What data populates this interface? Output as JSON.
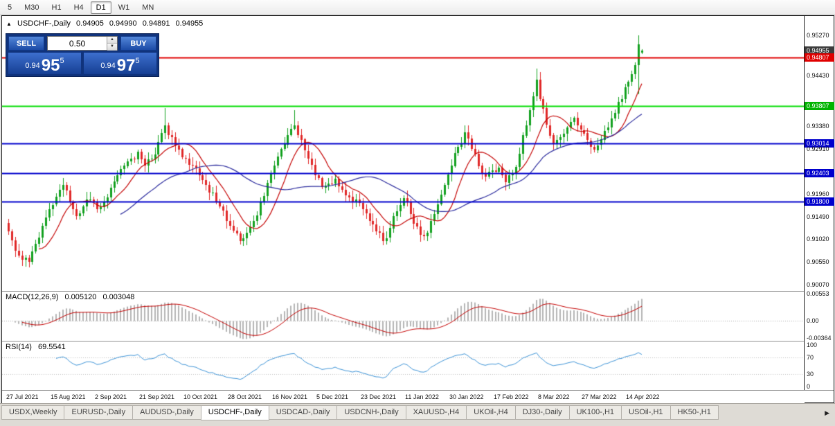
{
  "toolbar": {
    "timeframes": [
      {
        "label": "5",
        "active": false
      },
      {
        "label": "M30",
        "active": false
      },
      {
        "label": "H1",
        "active": false
      },
      {
        "label": "H4",
        "active": false
      },
      {
        "label": "D1",
        "active": true
      },
      {
        "label": "W1",
        "active": false
      },
      {
        "label": "MN",
        "active": false
      }
    ]
  },
  "icons": {
    "collapse": "▲",
    "spin_up": "▲",
    "spin_down": "▼",
    "tab_scroll_right": "▶"
  },
  "chart": {
    "title": {
      "collapse_icon": "▲",
      "symbol": "USDCHF-,Daily",
      "open": "0.94905",
      "high": "0.94990",
      "low": "0.94891",
      "close": "0.94955"
    }
  },
  "trade_panel": {
    "sell_label": "SELL",
    "buy_label": "BUY",
    "volume": "0.50",
    "bid_prefix": "0.94",
    "bid_big": "95",
    "bid_pips": "5",
    "ask_prefix": "0.94",
    "ask_big": "97",
    "ask_pips": "5"
  },
  "price_axis": {
    "labels": [
      {
        "text": "0.95270",
        "value": 0.9527,
        "type": "plain"
      },
      {
        "text": "0.94955",
        "value": 0.94955,
        "type": "current"
      },
      {
        "text": "0.94807",
        "value": 0.94807,
        "type": "red"
      },
      {
        "text": "0.94430",
        "value": 0.9443,
        "type": "plain"
      },
      {
        "text": "0.93807",
        "value": 0.93807,
        "type": "green"
      },
      {
        "text": "0.93380",
        "value": 0.9338,
        "type": "plain"
      },
      {
        "text": "0.93014",
        "value": 0.93014,
        "type": "blue"
      },
      {
        "text": "0.92910",
        "value": 0.9291,
        "type": "plain"
      },
      {
        "text": "0.92403",
        "value": 0.92403,
        "type": "blue"
      },
      {
        "text": "0.91960",
        "value": 0.9196,
        "type": "plain"
      },
      {
        "text": "0.91800",
        "value": 0.918,
        "type": "blue"
      },
      {
        "text": "0.91490",
        "value": 0.9149,
        "type": "plain"
      },
      {
        "text": "0.91020",
        "value": 0.9102,
        "type": "plain"
      },
      {
        "text": "0.90550",
        "value": 0.9055,
        "type": "plain"
      },
      {
        "text": "0.90070",
        "value": 0.9007,
        "type": "plain"
      }
    ]
  },
  "indicators": {
    "macd": {
      "name": "MACD(12,26,9)",
      "value_main": "0.005120",
      "value_signal": "0.003048",
      "axis_labels": [
        {
          "text": "0.00553",
          "value": 0.00553
        },
        {
          "text": "0.00",
          "value": 0
        },
        {
          "text": "-0.00364",
          "value": -0.00364
        }
      ]
    },
    "rsi": {
      "name": "RSI(14)",
      "value": "69.5541",
      "axis_labels": [
        {
          "text": "100",
          "value": 100
        },
        {
          "text": "70",
          "value": 70
        },
        {
          "text": "30",
          "value": 30
        },
        {
          "text": "0",
          "value": 0
        }
      ]
    }
  },
  "date_axis": {
    "labels": [
      {
        "text": "27 Jul 2021",
        "i": 0
      },
      {
        "text": "15 Aug 2021",
        "i": 13
      },
      {
        "text": "2 Sep 2021",
        "i": 26
      },
      {
        "text": "21 Sep 2021",
        "i": 39
      },
      {
        "text": "10 Oct 2021",
        "i": 52
      },
      {
        "text": "28 Oct 2021",
        "i": 65
      },
      {
        "text": "16 Nov 2021",
        "i": 78
      },
      {
        "text": "5 Dec 2021",
        "i": 91
      },
      {
        "text": "23 Dec 2021",
        "i": 104
      },
      {
        "text": "11 Jan 2022",
        "i": 117
      },
      {
        "text": "30 Jan 2022",
        "i": 130
      },
      {
        "text": "17 Feb 2022",
        "i": 143
      },
      {
        "text": "8 Mar 2022",
        "i": 156
      },
      {
        "text": "27 Mar 2022",
        "i": 169
      },
      {
        "text": "14 Apr 2022",
        "i": 182
      }
    ]
  },
  "tabs": {
    "items": [
      {
        "label": "USDX,Weekly",
        "active": false
      },
      {
        "label": "EURUSD-,Daily",
        "active": false
      },
      {
        "label": "AUDUSD-,Daily",
        "active": false
      },
      {
        "label": "USDCHF-,Daily",
        "active": true
      },
      {
        "label": "USDCAD-,Daily",
        "active": false
      },
      {
        "label": "USDCNH-,Daily",
        "active": false
      },
      {
        "label": "XAUUSD-,H4",
        "active": false
      },
      {
        "label": "UKOil-,H4",
        "active": false
      },
      {
        "label": "DJ30-,Daily",
        "active": false
      },
      {
        "label": "UK100-,H1",
        "active": false
      },
      {
        "label": "USOil-,H1",
        "active": false
      },
      {
        "label": "HK50-,H1",
        "active": false
      }
    ]
  },
  "colors": {
    "up": "#12a11f",
    "down": "#e02828",
    "ma_fast": "#c40000",
    "ma_slow": "#28289c",
    "macd_hist": "#b4b4b4",
    "macd_signal": "#c40000",
    "rsi": "#3d93d6",
    "axis_current_bg": "#3c3c3c",
    "tag_red": "#e00000",
    "tag_green": "#00b400",
    "tag_blue": "#0000cd"
  },
  "chart_data": {
    "type": "candlestick",
    "symbol": "USDCHF-",
    "timeframe": "Daily",
    "candle_count": 187,
    "first_open": 0.9135,
    "visible_price_range": [
      0.8994,
      0.9568
    ],
    "last_candle": {
      "open": 0.94905,
      "high": 0.9499,
      "low": 0.94891,
      "close": 0.94955
    },
    "close_anchors": [
      [
        0,
        0.9118
      ],
      [
        2,
        0.9078
      ],
      [
        4,
        0.906
      ],
      [
        6,
        0.9055
      ],
      [
        8,
        0.9092
      ],
      [
        10,
        0.913
      ],
      [
        12,
        0.9165
      ],
      [
        14,
        0.919
      ],
      [
        16,
        0.9215
      ],
      [
        18,
        0.918
      ],
      [
        20,
        0.915
      ],
      [
        22,
        0.917
      ],
      [
        24,
        0.9185
      ],
      [
        26,
        0.9165
      ],
      [
        28,
        0.918
      ],
      [
        30,
        0.921
      ],
      [
        32,
        0.9235
      ],
      [
        34,
        0.9255
      ],
      [
        36,
        0.927
      ],
      [
        38,
        0.9285
      ],
      [
        40,
        0.9255
      ],
      [
        42,
        0.927
      ],
      [
        44,
        0.9305
      ],
      [
        46,
        0.934
      ],
      [
        48,
        0.9315
      ],
      [
        50,
        0.929
      ],
      [
        52,
        0.927
      ],
      [
        54,
        0.9255
      ],
      [
        56,
        0.9235
      ],
      [
        58,
        0.9215
      ],
      [
        60,
        0.92
      ],
      [
        62,
        0.917
      ],
      [
        64,
        0.914
      ],
      [
        66,
        0.912
      ],
      [
        68,
        0.9098
      ],
      [
        70,
        0.9115
      ],
      [
        72,
        0.914
      ],
      [
        74,
        0.918
      ],
      [
        76,
        0.922
      ],
      [
        78,
        0.9255
      ],
      [
        80,
        0.929
      ],
      [
        82,
        0.932
      ],
      [
        84,
        0.934
      ],
      [
        86,
        0.931
      ],
      [
        88,
        0.927
      ],
      [
        90,
        0.9235
      ],
      [
        92,
        0.921
      ],
      [
        94,
        0.9218
      ],
      [
        96,
        0.9228
      ],
      [
        98,
        0.9205
      ],
      [
        100,
        0.919
      ],
      [
        102,
        0.9185
      ],
      [
        104,
        0.9165
      ],
      [
        106,
        0.914
      ],
      [
        108,
        0.9118
      ],
      [
        110,
        0.9098
      ],
      [
        112,
        0.9125
      ],
      [
        114,
        0.916
      ],
      [
        116,
        0.9188
      ],
      [
        118,
        0.9155
      ],
      [
        120,
        0.9128
      ],
      [
        122,
        0.9108
      ],
      [
        124,
        0.914
      ],
      [
        126,
        0.9175
      ],
      [
        128,
        0.9215
      ],
      [
        130,
        0.9255
      ],
      [
        132,
        0.9295
      ],
      [
        134,
        0.9325
      ],
      [
        136,
        0.929
      ],
      [
        138,
        0.9255
      ],
      [
        140,
        0.9232
      ],
      [
        142,
        0.9245
      ],
      [
        144,
        0.9252
      ],
      [
        146,
        0.922
      ],
      [
        148,
        0.924
      ],
      [
        150,
        0.928
      ],
      [
        152,
        0.934
      ],
      [
        154,
        0.94
      ],
      [
        155,
        0.9435
      ],
      [
        156,
        0.9395
      ],
      [
        158,
        0.934
      ],
      [
        160,
        0.93
      ],
      [
        162,
        0.9315
      ],
      [
        164,
        0.9335
      ],
      [
        166,
        0.9355
      ],
      [
        168,
        0.933
      ],
      [
        170,
        0.9308
      ],
      [
        172,
        0.9288
      ],
      [
        174,
        0.931
      ],
      [
        176,
        0.9335
      ],
      [
        178,
        0.9365
      ],
      [
        180,
        0.9395
      ],
      [
        182,
        0.943
      ],
      [
        184,
        0.9465
      ],
      [
        185,
        0.9508
      ],
      [
        186,
        0.94955
      ]
    ],
    "forced_wicks": [
      {
        "i": 5,
        "low": 0.9048
      },
      {
        "i": 46,
        "high": 0.9376
      },
      {
        "i": 84,
        "high": 0.9372
      },
      {
        "i": 155,
        "high": 0.9458
      },
      {
        "i": 185,
        "high": 0.9527,
        "low": 0.9405
      }
    ],
    "levels": [
      {
        "price": 0.94807,
        "color": "#e00000",
        "width": 2
      },
      {
        "price": 0.93807,
        "color": "#00dd00",
        "width": 2
      },
      {
        "price": 0.93014,
        "color": "#0000cd",
        "width": 2
      },
      {
        "price": 0.92403,
        "color": "#0000cd",
        "width": 2
      },
      {
        "price": 0.918,
        "color": "#0000cd",
        "width": 2
      }
    ],
    "moving_averages": [
      {
        "period": 10,
        "color": "#c40000"
      },
      {
        "period": 34,
        "color": "#28289c"
      }
    ],
    "macd": {
      "fast": 12,
      "slow": 26,
      "signal_period": 9,
      "current": 0.00512,
      "current_signal": 0.003048,
      "axis_range": [
        -0.00407,
        0.00596
      ]
    },
    "rsi": {
      "period": 14,
      "current": 69.5541,
      "guides": [
        70,
        30
      ],
      "display_range": [
        -8,
        108
      ]
    }
  }
}
